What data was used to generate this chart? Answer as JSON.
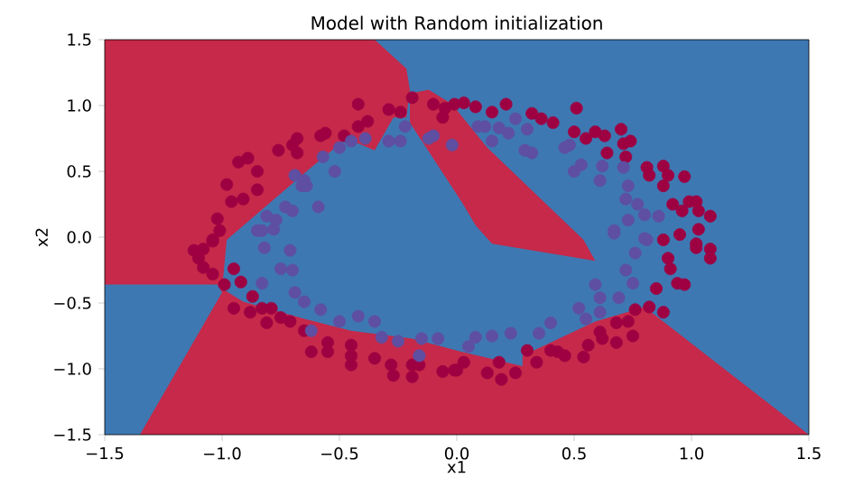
{
  "chart_data": {
    "type": "scatter",
    "title": "Model with Random initialization",
    "xlabel": "x1",
    "ylabel": "x2",
    "xlim": [
      -1.5,
      1.5
    ],
    "ylim": [
      -1.5,
      1.5
    ],
    "xticks": [
      {
        "value": -1.5,
        "label": "−1.5"
      },
      {
        "value": -1.0,
        "label": "−1.0"
      },
      {
        "value": -0.5,
        "label": "−0.5"
      },
      {
        "value": 0.0,
        "label": "0.0"
      },
      {
        "value": 0.5,
        "label": "0.5"
      },
      {
        "value": 1.0,
        "label": "1.0"
      },
      {
        "value": 1.5,
        "label": "1.5"
      }
    ],
    "yticks": [
      {
        "value": -1.5,
        "label": "−1.5"
      },
      {
        "value": -1.0,
        "label": "−1.0"
      },
      {
        "value": -0.5,
        "label": "−0.5"
      },
      {
        "value": 0.0,
        "label": "0.0"
      },
      {
        "value": 0.5,
        "label": "0.5"
      },
      {
        "value": 1.0,
        "label": "1.0"
      },
      {
        "value": 1.5,
        "label": "1.5"
      }
    ],
    "grid": false,
    "series": [
      {
        "type": "area",
        "marker": "none",
        "color": "#c6294a",
        "x": [
          -1.5,
          -1.5,
          -0.35,
          -0.215,
          -0.2,
          -0.215,
          -0.27,
          -0.35,
          -0.47,
          -0.62,
          -0.98,
          -1.0,
          -0.91,
          -0.65,
          -0.45,
          -0.19,
          0.02,
          0.28,
          0.28,
          0.59,
          0.8,
          1.5,
          -1.35,
          -1.0,
          -1.02
        ],
        "values": [
          -0.36,
          1.5,
          1.5,
          1.28,
          1.12,
          0.91,
          0.91,
          0.66,
          0.75,
          0.53,
          -0.02,
          -0.39,
          -0.49,
          -0.62,
          -0.71,
          -0.77,
          -0.87,
          -0.98,
          -0.9,
          -0.64,
          -0.53,
          -1.5,
          -1.5,
          -0.42,
          -0.36
        ]
      },
      {
        "type": "area",
        "marker": "none",
        "color": "#c6294a",
        "x": [
          -0.12,
          -0.02,
          0.13,
          0.54,
          0.59,
          0.15,
          0.08,
          0.02,
          -0.2,
          -0.2
        ],
        "values": [
          1.12,
          1.01,
          0.68,
          -0.02,
          -0.18,
          -0.05,
          0.09,
          0.27,
          0.87,
          1.09
        ]
      },
      {
        "marker": "circle",
        "color": "#9e0142",
        "x": [
          -0.42,
          -0.29,
          -0.24,
          -0.38,
          -0.42,
          -0.56,
          -0.58,
          -0.48,
          -0.68,
          -0.7,
          -0.76,
          -0.68,
          -0.89,
          -0.93,
          -0.85,
          -0.98,
          -0.85,
          -0.91,
          -0.96,
          -1.02,
          -1.04,
          -0.19,
          -0.1,
          -0.05,
          -0.06,
          -0.01,
          0.03,
          0.08,
          0.15,
          0.21,
          0.32,
          0.36,
          0.41,
          0.51,
          0.5,
          0.55,
          0.59,
          0.63,
          0.7,
          0.71,
          0.74,
          0.64,
          0.72,
          0.81,
          0.88,
          0.82,
          0.9,
          0.97,
          0.88,
          0.92,
          0.96,
          0.99,
          1.02,
          1.03,
          1.08,
          0.95,
          0.88,
          1.02,
          1.03,
          1.02,
          1.08,
          1.08,
          0.9,
          0.91,
          0.94,
          0.97,
          0.85,
          0.82,
          0.88,
          0.76,
          0.73,
          0.68,
          0.75,
          0.68,
          0.61,
          0.62,
          0.56,
          0.54,
          0.46,
          0.43,
          0.4,
          0.3,
          0.34,
          0.25,
          0.19,
          0.18,
          0.13,
          0.03,
          0.0,
          -1.12,
          -1.08,
          -1.04,
          -1.01,
          -1.1,
          -1.08,
          -1.04,
          -0.95,
          -0.99,
          -0.92,
          -0.95,
          -0.88,
          -0.87,
          -0.83,
          -0.79,
          -0.75,
          -0.81,
          -0.71,
          -0.65,
          -0.55,
          -0.62,
          -0.55,
          -0.45,
          -0.45,
          -0.45,
          -0.35,
          -0.28,
          -0.27,
          -0.19,
          -0.19,
          -0.16,
          -0.06,
          -0.01
        ],
        "values": [
          1.01,
          0.97,
          0.95,
          0.88,
          0.84,
          0.79,
          0.77,
          0.77,
          0.75,
          0.7,
          0.66,
          0.64,
          0.6,
          0.57,
          0.5,
          0.4,
          0.36,
          0.29,
          0.27,
          0.14,
          -0.02,
          1.06,
          1.01,
          0.98,
          0.91,
          1.01,
          1.02,
          0.99,
          0.95,
          1.01,
          0.94,
          0.9,
          0.87,
          0.98,
          0.8,
          0.75,
          0.8,
          0.77,
          0.82,
          0.71,
          0.73,
          0.64,
          0.61,
          0.53,
          0.54,
          0.47,
          0.47,
          0.46,
          0.39,
          0.25,
          0.2,
          0.27,
          0.27,
          0.2,
          0.16,
          0.02,
          -0.02,
          -0.05,
          0.06,
          -0.08,
          -0.09,
          -0.16,
          -0.16,
          -0.24,
          -0.35,
          -0.36,
          -0.39,
          -0.53,
          -0.57,
          -0.55,
          -0.64,
          -0.65,
          -0.75,
          -0.8,
          -0.72,
          -0.77,
          -0.82,
          -0.91,
          -0.9,
          -0.87,
          -0.86,
          -0.86,
          -0.95,
          -1.03,
          -1.08,
          -0.95,
          -1.03,
          -0.95,
          -1.01,
          -0.1,
          -0.09,
          -0.03,
          0.05,
          -0.16,
          -0.23,
          -0.28,
          -0.24,
          -0.36,
          -0.34,
          -0.54,
          -0.57,
          -0.45,
          -0.54,
          -0.54,
          -0.61,
          -0.65,
          -0.64,
          -0.71,
          -0.8,
          -0.87,
          -0.87,
          -0.82,
          -0.9,
          -0.97,
          -0.92,
          -0.97,
          -1.05,
          -0.97,
          -1.06,
          -0.97,
          -1.02,
          -1.01
        ]
      },
      {
        "marker": "circle",
        "color": "#5e4fa2",
        "x": [
          -0.69,
          -0.66,
          -0.64,
          -0.59,
          -0.57,
          -0.52,
          -0.5,
          -0.45,
          -0.39,
          -0.29,
          -0.24,
          -0.22,
          -0.12,
          -0.1,
          -0.73,
          -0.77,
          -0.81,
          -0.83,
          -0.65,
          -0.7,
          0.09,
          0.12,
          0.18,
          0.25,
          0.22,
          0.3,
          0.29,
          0.32,
          0.46,
          0.48,
          0.53,
          0.5,
          0.62,
          0.61,
          0.71,
          0.73,
          0.72,
          0.77,
          0.8,
          0.86,
          0.73,
          0.67,
          0.8,
          -0.02,
          0.15,
          0.67,
          0.81,
          0.76,
          0.72,
          0.75,
          0.59,
          0.61,
          0.69,
          0.52,
          0.61,
          0.55,
          0.4,
          0.35,
          0.23,
          0.15,
          0.08,
          0.05,
          -0.85,
          -0.78,
          -0.82,
          -0.71,
          -0.75,
          -0.7,
          -0.83,
          -0.69,
          -0.65,
          -0.58,
          -0.62,
          -0.5,
          -0.42,
          -0.35,
          -0.32,
          -0.25,
          -0.15,
          -0.08,
          -0.16
        ],
        "values": [
          0.47,
          0.39,
          0.39,
          0.23,
          0.61,
          0.5,
          0.68,
          0.73,
          0.75,
          0.73,
          0.73,
          0.84,
          0.75,
          0.77,
          0.23,
          0.13,
          0.16,
          0.05,
          0.43,
          0.2,
          0.84,
          0.84,
          0.83,
          0.9,
          0.79,
          0.82,
          0.66,
          0.64,
          0.68,
          0.7,
          0.55,
          0.5,
          0.54,
          0.43,
          0.53,
          0.39,
          0.29,
          0.25,
          0.17,
          0.16,
          0.13,
          0.05,
          -0.01,
          0.7,
          0.73,
          0.03,
          -0.02,
          -0.12,
          -0.25,
          -0.35,
          -0.36,
          -0.46,
          -0.46,
          -0.54,
          -0.57,
          -0.62,
          -0.65,
          -0.73,
          -0.73,
          -0.75,
          -0.76,
          -0.83,
          0.05,
          0.06,
          -0.08,
          -0.1,
          -0.24,
          -0.25,
          -0.35,
          -0.42,
          -0.49,
          -0.55,
          -0.71,
          -0.64,
          -0.6,
          -0.64,
          -0.76,
          -0.79,
          -0.77,
          -0.77,
          -0.9
        ]
      }
    ]
  }
}
